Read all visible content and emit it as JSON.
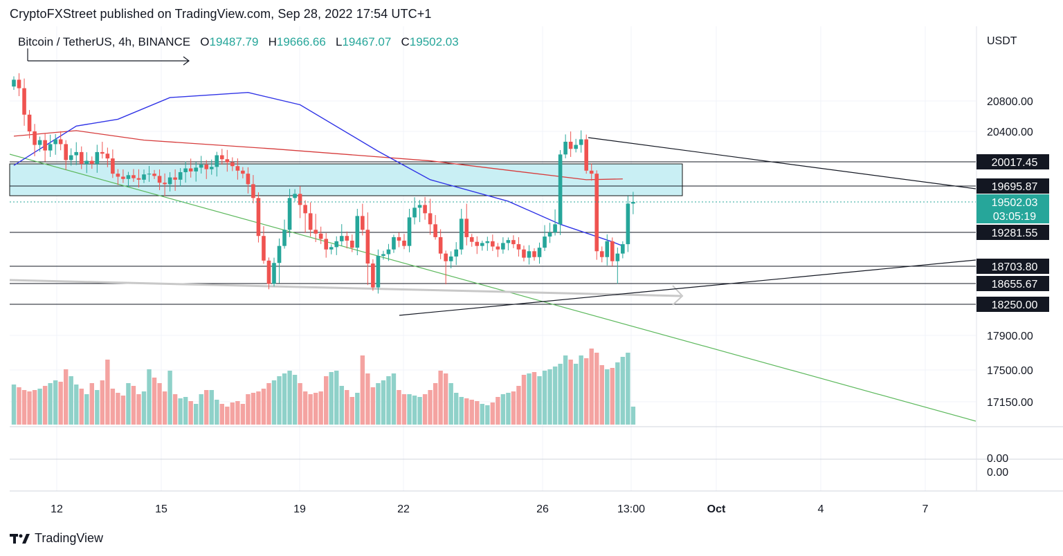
{
  "header": {
    "published": "CryptoFXStreet published on TradingView.com, Sep 28, 2022 17:54 UTC+1"
  },
  "legend": {
    "symbol": "Bitcoin / TetherUS, 4h, BINANCE",
    "o_label": "O",
    "o": "19487.79",
    "h_label": "H",
    "h": "19666.66",
    "l_label": "L",
    "l": "19467.07",
    "c_label": "C",
    "c": "19502.03"
  },
  "footer": {
    "brand": "TradingView",
    "logo_icon": "tradingview-logo-icon"
  },
  "colors": {
    "up": "#26a69a",
    "down": "#ef5350",
    "ema_blue": "#2f33e6",
    "ma_red": "#d63b3b",
    "zone": "#c9eff4",
    "trend_green": "#5cb85c"
  },
  "chart_data": {
    "type": "candlestick",
    "interval": "4h",
    "currency": "USDT",
    "y_axis_ticks": [
      20800,
      20400,
      17900,
      17500,
      17150
    ],
    "y_axis_tick_labels": [
      "20800.00",
      "20400.00",
      "17900.00",
      "17500.00",
      "17150.00"
    ],
    "y_range": [
      16950,
      21500
    ],
    "x_axis_labels": [
      "12",
      "15",
      "19",
      "22",
      "26",
      "13:00",
      "Oct",
      "4",
      "7"
    ],
    "horizontal_levels": [
      {
        "value": 20017.45,
        "label": "20017.45"
      },
      {
        "value": 19695.87,
        "label": "19695.87"
      },
      {
        "value": 19281.55,
        "label": "19281.55"
      },
      {
        "value": 18703.8,
        "label": "18703.80"
      },
      {
        "value": 18655.67,
        "label": "18655.67"
      },
      {
        "value": 18250.0,
        "label": "18250.00"
      }
    ],
    "last_price": {
      "value": 19502.03,
      "label": "19502.03",
      "countdown": "03:05:19"
    },
    "zone": {
      "from": 19630,
      "to": 20050
    },
    "volume_pane_labels": [
      "0.00",
      "0.00"
    ],
    "series": [
      {
        "close": [
          21050,
          20950,
          20620,
          20400,
          20230,
          20290,
          20160,
          20240,
          20300,
          20240,
          20040,
          20100,
          20140,
          19990,
          20030,
          19990,
          20140,
          20120,
          20060,
          19860,
          19820,
          19790,
          19840,
          19800,
          19780,
          19850,
          19860,
          19830,
          19740,
          19720,
          19810,
          19780,
          19880,
          19930,
          19890,
          19940,
          19980,
          19920,
          19950,
          20100,
          20050,
          20010,
          19960,
          19900,
          19860,
          19720,
          19550,
          19220,
          18800,
          18650,
          18760,
          19050,
          19300,
          19550,
          19600,
          19480,
          19420,
          19300,
          19260,
          19170,
          18990,
          19030,
          19130,
          19220,
          19140,
          19020,
          19400,
          19300,
          18750,
          18580,
          18880,
          18910,
          18990,
          19200,
          19140,
          19050,
          19390,
          19460,
          19480,
          19420,
          19340,
          19200,
          18920,
          18790,
          18870,
          18990,
          19380,
          19200,
          19120,
          19050,
          19100,
          19130,
          19040,
          18990,
          19100,
          19150,
          19080,
          18990,
          18850,
          18960,
          18860,
          19020,
          19210,
          19280,
          19340,
          20110,
          20270,
          20180,
          20230,
          20300,
          19900,
          19860,
          18960,
          18860,
          19130,
          18790,
          18920,
          19080,
          19490,
          19502
        ]
      },
      {
        "name": "blue",
        "values_by_date": [
          [
            0,
            19970
          ],
          [
            12,
            20470
          ],
          [
            20,
            20560
          ],
          [
            30,
            20840
          ],
          [
            45,
            20900
          ],
          [
            55,
            20750
          ],
          [
            70,
            20150
          ],
          [
            80,
            19780
          ],
          [
            95,
            19510
          ],
          [
            105,
            19340
          ],
          [
            115,
            19120
          ],
          [
            117,
            19050
          ]
        ]
      },
      {
        "name": "red",
        "values_by_date": [
          [
            0,
            20340
          ],
          [
            12,
            20410
          ],
          [
            25,
            20290
          ],
          [
            50,
            20180
          ],
          [
            80,
            20030
          ],
          [
            110,
            19780
          ],
          [
            117,
            19790
          ]
        ]
      }
    ],
    "volume": [
      58,
      54,
      50,
      48,
      50,
      52,
      56,
      60,
      64,
      62,
      80,
      70,
      58,
      52,
      44,
      60,
      50,
      64,
      94,
      52,
      46,
      42,
      60,
      56,
      44,
      48,
      80,
      68,
      60,
      48,
      78,
      44,
      38,
      40,
      34,
      30,
      44,
      50,
      50,
      36,
      30,
      26,
      32,
      34,
      30,
      44,
      46,
      48,
      52,
      60,
      64,
      70,
      74,
      78,
      72,
      60,
      48,
      44,
      46,
      48,
      70,
      76,
      78,
      56,
      50,
      40,
      46,
      100,
      74,
      54,
      60,
      64,
      70,
      74,
      50,
      44,
      44,
      42,
      40,
      44,
      50,
      60,
      78,
      74,
      60,
      46,
      40,
      38,
      36,
      34,
      30,
      28,
      32,
      40,
      44,
      46,
      48,
      56,
      72,
      74,
      76,
      70,
      78,
      80,
      84,
      88,
      100,
      94,
      88,
      100,
      96,
      110,
      104,
      86,
      80,
      82,
      90,
      98,
      104,
      26
    ]
  }
}
